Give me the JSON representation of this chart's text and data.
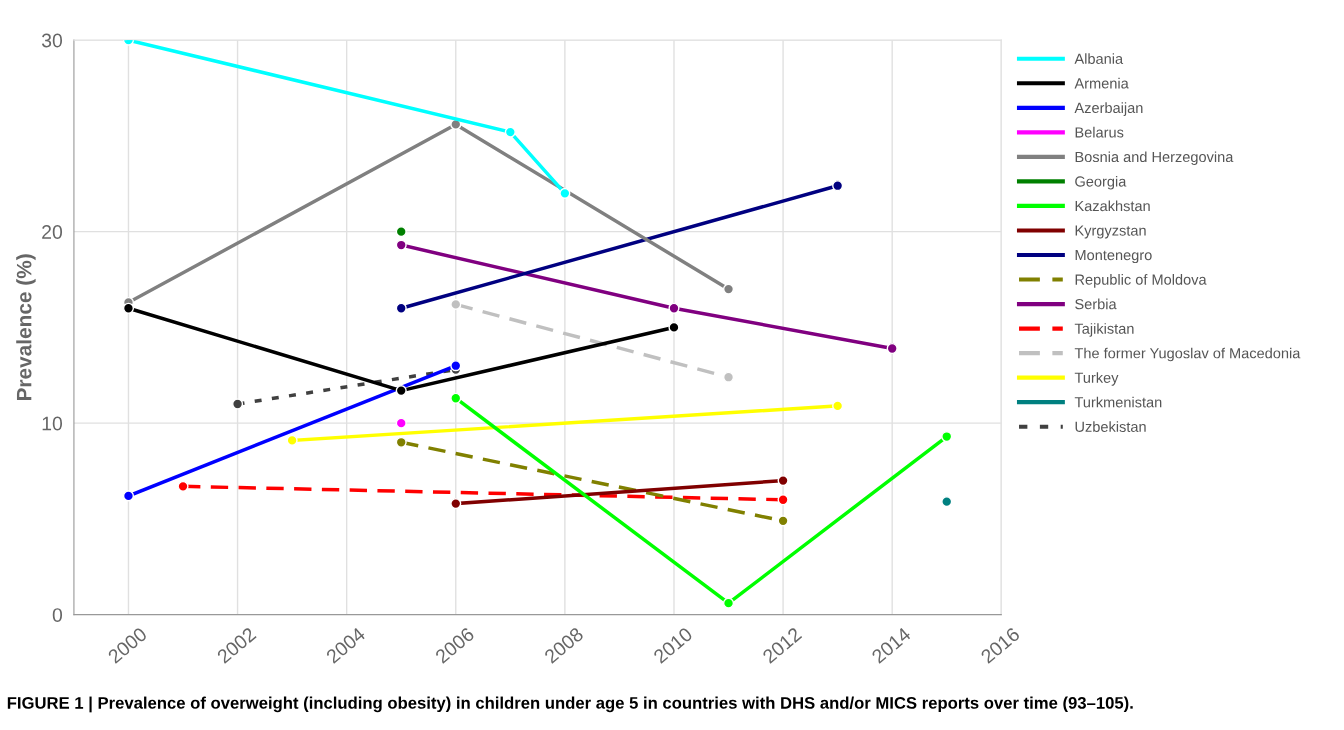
{
  "chart_data": {
    "type": "line",
    "ylabel": "Prevalence (%)",
    "xlim": [
      1999,
      2016
    ],
    "xticks": [
      2000,
      2002,
      2004,
      2006,
      2008,
      2010,
      2012,
      2014,
      2016
    ],
    "ylim": [
      0,
      30
    ],
    "yticks": [
      0,
      10,
      20,
      30
    ],
    "grid": true,
    "legend": "right",
    "marker": "circle",
    "series": [
      {
        "name": "Albania",
        "color": "#00ffff",
        "x": [
          2000,
          2007,
          2008
        ],
        "values": [
          30.0,
          25.2,
          22.0
        ]
      },
      {
        "name": "Armenia",
        "color": "#000000",
        "x": [
          2000,
          2005,
          2010
        ],
        "values": [
          16.0,
          11.7,
          15.0
        ]
      },
      {
        "name": "Azerbaijan",
        "color": "#0000ff",
        "x": [
          2000,
          2006
        ],
        "values": [
          6.2,
          13.0
        ]
      },
      {
        "name": "Belarus",
        "color": "#ff00ff",
        "x": [
          2005
        ],
        "values": [
          10.0
        ]
      },
      {
        "name": "Bosnia and Herzegovina",
        "color": "#808080",
        "x": [
          2000,
          2006,
          2011
        ],
        "values": [
          16.3,
          25.6,
          17.0
        ]
      },
      {
        "name": "Georgia",
        "color": "#008000",
        "x": [
          2005
        ],
        "values": [
          20.0
        ]
      },
      {
        "name": "Kazakhstan",
        "color": "#00ff00",
        "x": [
          2006,
          2011,
          2015
        ],
        "values": [
          11.3,
          0.6,
          9.3
        ]
      },
      {
        "name": "Kyrgyzstan",
        "color": "#800000",
        "x": [
          2006,
          2012
        ],
        "values": [
          5.8,
          7.0
        ]
      },
      {
        "name": "Montenegro",
        "color": "#000080",
        "x": [
          2005,
          2013
        ],
        "values": [
          16.0,
          22.4
        ]
      },
      {
        "name": "Republic of Moldova",
        "color": "#808000",
        "line_style": "dashed",
        "x": [
          2005,
          2012
        ],
        "values": [
          9.0,
          4.9
        ]
      },
      {
        "name": "Serbia",
        "color": "#800080",
        "x": [
          2005,
          2010,
          2014
        ],
        "values": [
          19.3,
          16.0,
          13.9
        ]
      },
      {
        "name": "Tajikistan",
        "color": "#ff0000",
        "line_style": "dashed",
        "x": [
          2001,
          2012
        ],
        "values": [
          6.7,
          6.0
        ]
      },
      {
        "name": "The former Yugoslav of Macedonia",
        "color": "#c0c0c0",
        "line_style": "dashed",
        "x": [
          2006,
          2011
        ],
        "values": [
          16.2,
          12.4
        ]
      },
      {
        "name": "Turkey",
        "color": "#ffff00",
        "x": [
          2003,
          2013
        ],
        "values": [
          9.1,
          10.9
        ]
      },
      {
        "name": "Turkmenistan",
        "color": "#008080",
        "x": [
          2015
        ],
        "values": [
          5.9
        ]
      },
      {
        "name": "Uzbekistan",
        "color": "#404040",
        "line_style": "dotted",
        "x": [
          2002,
          2006
        ],
        "values": [
          11.0,
          12.8
        ]
      }
    ],
    "annotations": [
      "FIGURE 1 | Prevalence of overweight (including obesity) in children under age 5 in countries with DHS and/or MICS reports over time (93–105)."
    ]
  }
}
